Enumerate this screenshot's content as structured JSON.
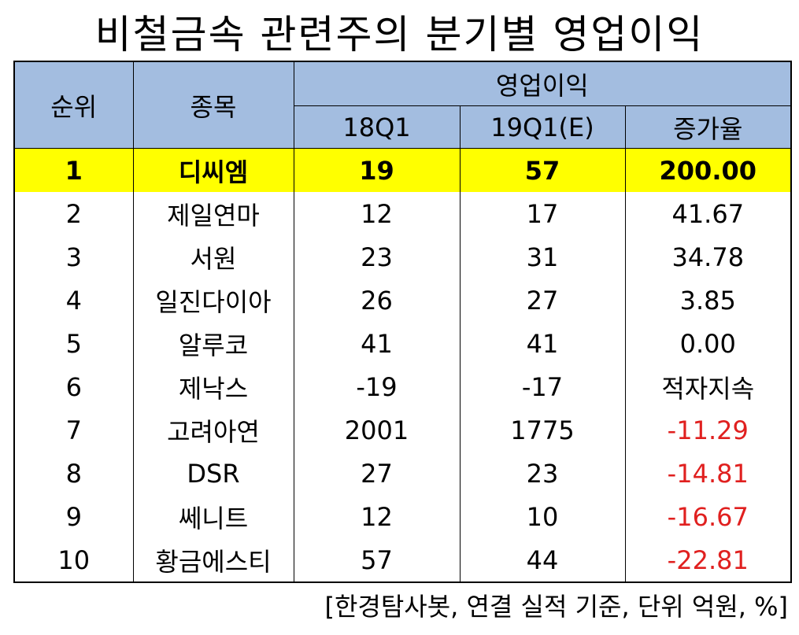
{
  "title": "비철금속 관련주의 분기별 영업이익",
  "table": {
    "header": {
      "rank": "순위",
      "name": "종목",
      "group": "영업이익",
      "col1": "18Q1",
      "col2": "19Q1(E)",
      "col3": "증가율"
    },
    "rows": [
      [
        "1",
        "디씨엠",
        "19",
        "57",
        "200.00"
      ],
      [
        "2",
        "제일연마",
        "12",
        "17",
        "41.67"
      ],
      [
        "3",
        "서원",
        "23",
        "31",
        "34.78"
      ],
      [
        "4",
        "일진다이아",
        "26",
        "27",
        "3.85"
      ],
      [
        "5",
        "알루코",
        "41",
        "41",
        "0.00"
      ],
      [
        "6",
        "제낙스",
        "-19",
        "-17",
        "적자지속"
      ],
      [
        "7",
        "고려아연",
        "2001",
        "1775",
        "-11.29"
      ],
      [
        "8",
        "DSR",
        "27",
        "23",
        "-14.81"
      ],
      [
        "9",
        "쎄니트",
        "12",
        "10",
        "-16.67"
      ],
      [
        "10",
        "황금에스티",
        "57",
        "44",
        "-22.81"
      ]
    ]
  },
  "footnote": "[한경탐사봇, 연결 실적 기준, 단위 억원, %]"
}
